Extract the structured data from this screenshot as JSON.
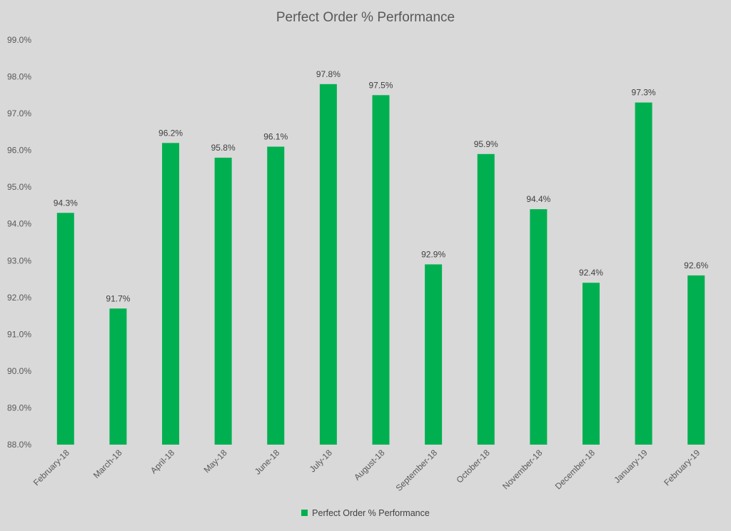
{
  "chart_data": {
    "type": "bar",
    "title": "Perfect Order % Performance",
    "xlabel": "",
    "ylabel": "",
    "ylim": [
      88.0,
      99.0
    ],
    "y_ticks": [
      "88.0%",
      "89.0%",
      "90.0%",
      "91.0%",
      "92.0%",
      "93.0%",
      "94.0%",
      "95.0%",
      "96.0%",
      "97.0%",
      "98.0%",
      "99.0%"
    ],
    "grid": false,
    "legend_position": "bottom",
    "categories": [
      "February-18",
      "March-18",
      "April-18",
      "May-18",
      "June-18",
      "July-18",
      "August-18",
      "September-18",
      "October-18",
      "November-18",
      "December-18",
      "January-19",
      "February-19"
    ],
    "series": [
      {
        "name": "Perfect Order % Performance",
        "color": "#00b050",
        "values": [
          94.3,
          91.7,
          96.2,
          95.8,
          96.1,
          97.8,
          97.5,
          92.9,
          95.9,
          94.4,
          92.4,
          97.3,
          92.6
        ],
        "labels": [
          "94.3%",
          "91.7%",
          "96.2%",
          "95.8%",
          "96.1%",
          "97.8%",
          "97.5%",
          "92.9%",
          "95.9%",
          "94.4%",
          "92.4%",
          "97.3%",
          "92.6%"
        ]
      }
    ]
  },
  "colors": {
    "background": "#d9d9d9",
    "bar": "#00b050",
    "text": "#595959"
  }
}
